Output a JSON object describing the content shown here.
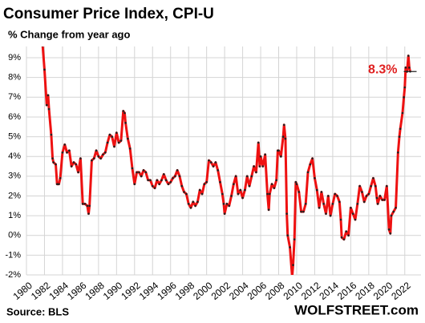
{
  "chart_data": {
    "type": "line",
    "title": "Consumer Price Index, CPI-U",
    "subtitle": "% Change from year ago",
    "source": "Source: BLS",
    "credit": "WOLFSTREET.com",
    "annotation": {
      "text": "8.3%",
      "x": 2022.6,
      "y": 8.3
    },
    "xlim": [
      1980,
      2023.8
    ],
    "xticks": [
      1980,
      1982,
      1984,
      1986,
      1988,
      1990,
      1992,
      1994,
      1996,
      1998,
      2000,
      2002,
      2004,
      2006,
      2008,
      2010,
      2012,
      2014,
      2016,
      2018,
      2020,
      2022
    ],
    "ylim": [
      -2,
      9.57
    ],
    "yticks": [
      {
        "value": -2,
        "label": "-2%"
      },
      {
        "value": -1,
        "label": "-1%"
      },
      {
        "value": 0,
        "label": "0%"
      },
      {
        "value": 1,
        "label": "1%"
      },
      {
        "value": 2,
        "label": "2%"
      },
      {
        "value": 3,
        "label": "3%"
      },
      {
        "value": 4,
        "label": "4%"
      },
      {
        "value": 5,
        "label": "5%"
      },
      {
        "value": 6,
        "label": "6%"
      },
      {
        "value": 7,
        "label": "7%"
      },
      {
        "value": 8,
        "label": "8%"
      },
      {
        "value": 9,
        "label": "9%"
      }
    ],
    "grid": true,
    "x": [
      1981.8,
      1982.0,
      1982.25,
      1982.4,
      1982.5,
      1982.75,
      1982.9,
      1983.0,
      1983.25,
      1983.4,
      1983.6,
      1983.75,
      1984.0,
      1984.25,
      1984.5,
      1984.75,
      1985.0,
      1985.25,
      1985.5,
      1985.75,
      1986.0,
      1986.25,
      1986.5,
      1986.75,
      1986.9,
      1987.0,
      1987.25,
      1987.5,
      1987.75,
      1988.0,
      1988.25,
      1988.5,
      1988.75,
      1989.0,
      1989.25,
      1989.5,
      1989.75,
      1990.0,
      1990.25,
      1990.5,
      1990.75,
      1990.9,
      1991.0,
      1991.25,
      1991.5,
      1991.75,
      1992.0,
      1992.25,
      1992.5,
      1992.75,
      1993.0,
      1993.25,
      1993.5,
      1993.75,
      1994.0,
      1994.25,
      1994.5,
      1994.75,
      1995.0,
      1995.25,
      1995.5,
      1995.75,
      1996.0,
      1996.25,
      1996.5,
      1996.75,
      1997.0,
      1997.25,
      1997.5,
      1997.75,
      1998.0,
      1998.25,
      1998.5,
      1998.75,
      1999.0,
      1999.25,
      1999.5,
      1999.75,
      2000.0,
      2000.25,
      2000.5,
      2000.75,
      2001.0,
      2001.25,
      2001.5,
      2001.75,
      2001.9,
      2002.0,
      2002.25,
      2002.5,
      2002.75,
      2003.0,
      2003.25,
      2003.5,
      2003.75,
      2004.0,
      2004.25,
      2004.5,
      2004.75,
      2005.0,
      2005.25,
      2005.5,
      2005.75,
      2005.9,
      2006.0,
      2006.25,
      2006.5,
      2006.75,
      2006.9,
      2007.0,
      2007.25,
      2007.5,
      2007.75,
      2007.9,
      2008.0,
      2008.25,
      2008.5,
      2008.6,
      2008.75,
      2008.9,
      2009.0,
      2009.25,
      2009.5,
      2009.6,
      2009.75,
      2009.9,
      2010.0,
      2010.25,
      2010.5,
      2010.75,
      2011.0,
      2011.25,
      2011.5,
      2011.75,
      2012.0,
      2012.25,
      2012.5,
      2012.75,
      2013.0,
      2013.25,
      2013.5,
      2013.75,
      2014.0,
      2014.25,
      2014.5,
      2014.75,
      2014.9,
      2015.0,
      2015.25,
      2015.5,
      2015.75,
      2016.0,
      2016.25,
      2016.5,
      2016.75,
      2017.0,
      2017.25,
      2017.5,
      2017.75,
      2018.0,
      2018.25,
      2018.5,
      2018.75,
      2018.9,
      2019.0,
      2019.25,
      2019.5,
      2019.75,
      2020.0,
      2020.25,
      2020.4,
      2020.5,
      2020.75,
      2021.0,
      2021.25,
      2021.4,
      2021.5,
      2021.75,
      2021.9,
      2022.0,
      2022.1,
      2022.25,
      2022.4,
      2022.5,
      2022.6
    ],
    "series": [
      {
        "name": "CPI-U",
        "color": "#ee1111",
        "marker_color": "#222222",
        "values": [
          9.6,
          8.4,
          6.6,
          7.1,
          6.4,
          5.1,
          3.9,
          3.7,
          3.6,
          2.6,
          2.6,
          2.9,
          4.2,
          4.6,
          4.2,
          4.3,
          3.5,
          3.7,
          3.6,
          3.2,
          3.9,
          1.6,
          1.6,
          1.5,
          1.1,
          1.5,
          3.8,
          3.9,
          4.3,
          4.0,
          3.9,
          4.1,
          4.2,
          4.7,
          5.1,
          5.0,
          4.5,
          5.2,
          4.7,
          4.8,
          6.3,
          6.2,
          5.7,
          4.9,
          4.4,
          3.4,
          2.6,
          3.2,
          3.2,
          3.0,
          3.3,
          3.2,
          2.8,
          2.8,
          2.5,
          2.4,
          2.8,
          2.6,
          2.8,
          3.1,
          2.8,
          2.6,
          2.7,
          2.9,
          3.0,
          3.3,
          3.0,
          2.5,
          2.2,
          2.1,
          1.6,
          1.4,
          1.7,
          1.5,
          1.7,
          2.3,
          2.1,
          2.6,
          2.7,
          3.8,
          3.7,
          3.5,
          3.7,
          3.3,
          2.7,
          2.1,
          1.6,
          1.1,
          1.6,
          1.5,
          2.0,
          2.6,
          3.0,
          2.1,
          2.3,
          1.9,
          2.3,
          3.0,
          2.5,
          3.0,
          3.5,
          3.2,
          4.7,
          3.5,
          4.0,
          3.5,
          4.1,
          2.1,
          1.3,
          2.1,
          2.6,
          2.4,
          2.8,
          4.3,
          4.3,
          4.0,
          5.0,
          5.6,
          4.9,
          1.1,
          0.0,
          -0.6,
          -2.1,
          -1.5,
          -0.2,
          2.7,
          2.6,
          2.2,
          1.2,
          1.2,
          1.6,
          3.2,
          3.6,
          3.9,
          2.9,
          2.3,
          1.4,
          2.2,
          1.6,
          1.1,
          2.0,
          1.0,
          1.6,
          2.1,
          2.0,
          1.7,
          0.8,
          -0.1,
          -0.2,
          0.2,
          0.0,
          1.4,
          1.1,
          0.8,
          1.6,
          2.5,
          2.2,
          1.7,
          2.0,
          2.1,
          2.5,
          2.9,
          2.5,
          1.9,
          1.6,
          2.0,
          1.8,
          1.8,
          2.5,
          0.3,
          0.1,
          1.0,
          1.2,
          1.4,
          4.2,
          5.0,
          5.4,
          6.2,
          7.0,
          7.5,
          8.5,
          8.3,
          9.1,
          8.5,
          8.3
        ]
      }
    ]
  }
}
